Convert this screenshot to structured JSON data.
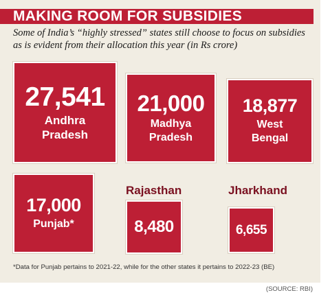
{
  "header": {
    "title": "MAKING ROOM FOR SUBSIDIES",
    "subtitle": "Some of India’s “highly stressed” states still choose to focus on subsidies as is evident from their allocation this year (in Rs crore)"
  },
  "chart_data": {
    "type": "table",
    "unit": "Rs crore",
    "categories": [
      "Andhra Pradesh",
      "Madhya Pradesh",
      "West Bengal",
      "Punjab*",
      "Rajasthan",
      "Jharkhand"
    ],
    "values": [
      27541,
      21000,
      18877,
      17000,
      8480,
      6655
    ],
    "display_values": [
      "27,541",
      "21,000",
      "18,877",
      "17,000",
      "8,480",
      "6,655"
    ],
    "labels": [
      [
        "Andhra",
        "Pradesh"
      ],
      [
        "Madhya",
        "Pradesh"
      ],
      [
        "West",
        "Bengal"
      ],
      [
        "Punjab*"
      ],
      [
        "Rajasthan"
      ],
      [
        "Jharkhand"
      ]
    ]
  },
  "footnote": "*Data for Punjab pertains to 2021-22, while for the other states it pertains to 2022-23 (BE)",
  "source": "(SOURCE: RBI)",
  "colors": {
    "accent": "#bd1f35",
    "background": "#f1ede3",
    "outer_label": "#7a1020"
  }
}
